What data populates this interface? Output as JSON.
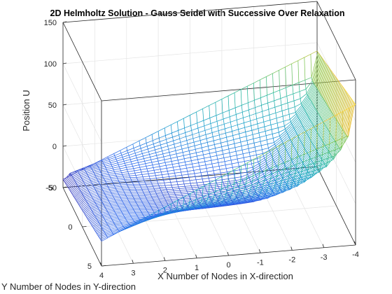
{
  "chart_data": {
    "type": "surface-mesh",
    "title": "2D Helmholtz Solution -  Gauss Seidel with Successive Over Relaxation",
    "xlabel": "X Number of Nodes in X-direction",
    "ylabel": "Y Number of Nodes in Y-direction",
    "zlabel": "Position U",
    "x_ticks": [
      "4",
      "3",
      "2",
      "1",
      "0",
      "-1",
      "-2",
      "-3",
      "-4"
    ],
    "y_ticks": [
      "-5",
      "0",
      "5"
    ],
    "z_ticks": [
      "150",
      "100",
      "50",
      "0",
      "-50"
    ],
    "xlim": [
      -4,
      4
    ],
    "ylim": [
      -5,
      5
    ],
    "zlim": [
      -50,
      150
    ],
    "grid": true,
    "colormap": [
      "#3e26a8",
      "#2c69ed",
      "#149ccc",
      "#28b99c",
      "#8bc648",
      "#ffc23f",
      "#f9fb15"
    ],
    "corner_values": {
      "x_-4_y_-5": 120,
      "x_-4_y_5": 90,
      "x_4_y_-5": -20,
      "x_4_y_5": -40
    }
  }
}
